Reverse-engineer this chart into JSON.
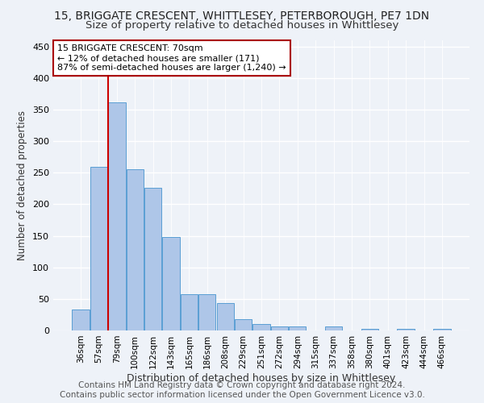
{
  "title": "15, BRIGGATE CRESCENT, WHITTLESEY, PETERBOROUGH, PE7 1DN",
  "subtitle": "Size of property relative to detached houses in Whittlesey",
  "xlabel": "Distribution of detached houses by size in Whittlesey",
  "ylabel": "Number of detached properties",
  "categories": [
    "36sqm",
    "57sqm",
    "79sqm",
    "100sqm",
    "122sqm",
    "143sqm",
    "165sqm",
    "186sqm",
    "208sqm",
    "229sqm",
    "251sqm",
    "272sqm",
    "294sqm",
    "315sqm",
    "337sqm",
    "358sqm",
    "380sqm",
    "401sqm",
    "423sqm",
    "444sqm",
    "466sqm"
  ],
  "values": [
    33,
    260,
    362,
    255,
    226,
    148,
    57,
    57,
    44,
    18,
    10,
    6,
    6,
    0,
    6,
    0,
    3,
    0,
    2,
    0,
    2
  ],
  "bar_color": "#aec6e8",
  "bar_edge_color": "#5a9fd4",
  "bar_edge_width": 0.7,
  "red_line_x": 1.5,
  "annotation_line1": "15 BRIGGATE CRESCENT: 70sqm",
  "annotation_line2": "← 12% of detached houses are smaller (171)",
  "annotation_line3": "87% of semi-detached houses are larger (1,240) →",
  "annotation_box_color": "#ffffff",
  "annotation_box_edge": "#aa0000",
  "annotation_fontsize": 8.0,
  "ylim": [
    0,
    460
  ],
  "yticks": [
    0,
    50,
    100,
    150,
    200,
    250,
    300,
    350,
    400,
    450
  ],
  "background_color": "#eef2f8",
  "grid_color": "#ffffff",
  "footer": "Contains HM Land Registry data © Crown copyright and database right 2024.\nContains public sector information licensed under the Open Government Licence v3.0.",
  "title_fontsize": 10,
  "subtitle_fontsize": 9.5,
  "xlabel_fontsize": 9,
  "ylabel_fontsize": 8.5,
  "footer_fontsize": 7.5,
  "tick_fontsize": 7.5,
  "ytick_fontsize": 8
}
